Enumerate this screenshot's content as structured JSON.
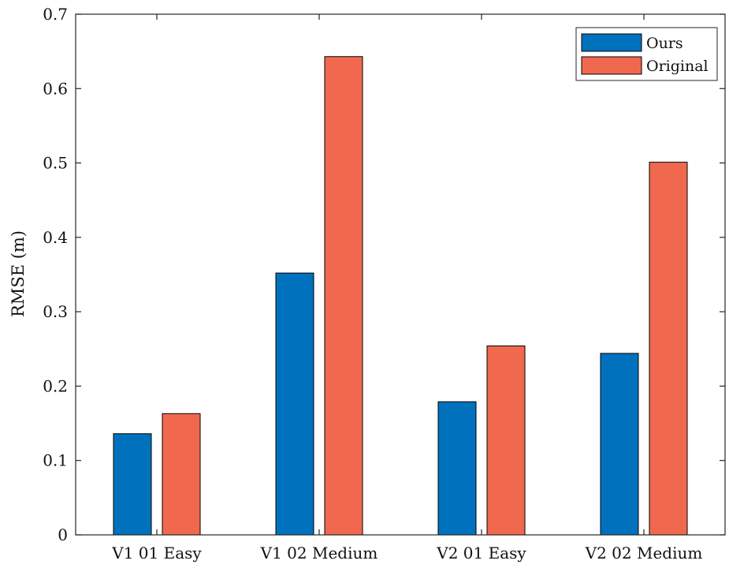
{
  "chart_data": {
    "type": "bar",
    "title": "",
    "xlabel": "",
    "ylabel": "RMSE (m)",
    "categories": [
      "V1 01 Easy",
      "V1 02 Medium",
      "V2 01 Easy",
      "V2 02 Medium"
    ],
    "series": [
      {
        "name": "Ours",
        "values": [
          0.136,
          0.352,
          0.179,
          0.244
        ],
        "color": "#0072BD"
      },
      {
        "name": "Original",
        "values": [
          0.163,
          0.643,
          0.254,
          0.501
        ],
        "color": "#F0694E"
      }
    ],
    "ylim": [
      0,
      0.7
    ],
    "yticks": [
      "0",
      "0.1",
      "0.2",
      "0.3",
      "0.4",
      "0.5",
      "0.6",
      "0.7"
    ],
    "grid": false,
    "legend_position": "top-right"
  }
}
